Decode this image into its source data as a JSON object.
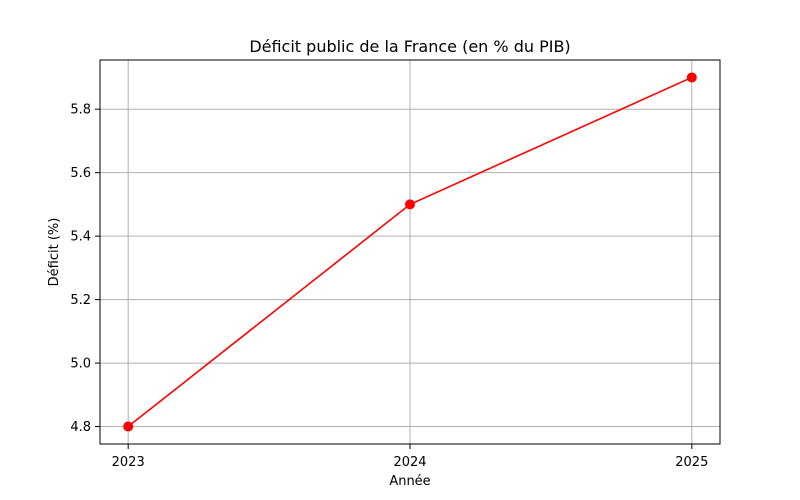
{
  "chart_data": {
    "type": "line",
    "title": "Déficit public de la France (en % du PIB)",
    "xlabel": "Année",
    "ylabel": "Déficit (%)",
    "x": [
      2023,
      2024,
      2025
    ],
    "x_tick_labels": [
      "2023",
      "2024",
      "2025"
    ],
    "y_ticks": [
      4.8,
      5.0,
      5.2,
      5.4,
      5.6,
      5.8
    ],
    "y_tick_labels": [
      "4.8",
      "5.0",
      "5.2",
      "5.4",
      "5.6",
      "5.8"
    ],
    "series": [
      {
        "values": [
          4.8,
          5.5,
          5.9
        ],
        "color": "#ff0000",
        "marker": "circle"
      }
    ],
    "xlim": [
      2022.9,
      2025.1
    ],
    "ylim": [
      4.745,
      5.955
    ],
    "grid": true,
    "legend": "none"
  }
}
